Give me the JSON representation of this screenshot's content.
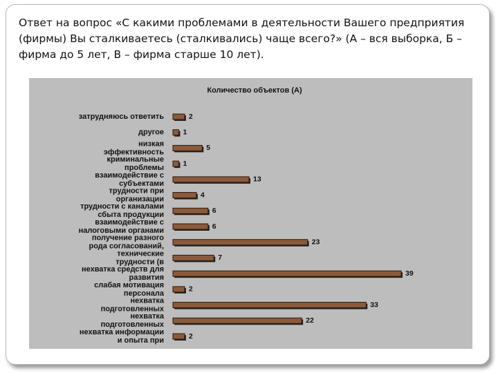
{
  "heading": "Ответ на вопрос «С какими проблемами в деятельности Вашего предприятия (фирмы) Вы сталкиваетесь (сталкивались) чаще всего?» (А – вся выборка, Б – фирма до 5 лет, В – фирма старше 10 лет).",
  "chart_data": {
    "type": "hbar",
    "title": "Количество объектов (А)",
    "categories": [
      [
        "затрудняюсь ответить"
      ],
      [
        "другое"
      ],
      [
        "низкая",
        "эффективность"
      ],
      [
        "криминальные",
        "проблемы"
      ],
      [
        "взаимодействие с",
        "субъектами"
      ],
      [
        "трудности при",
        "организации"
      ],
      [
        "трудности с каналами",
        "сбыта продукции"
      ],
      [
        "взаимодействие с",
        "налоговыми органами"
      ],
      [
        "получение разного",
        "рода согласований,"
      ],
      [
        "технические",
        "трудности (в"
      ],
      [
        "нехватка средств для",
        "развития"
      ],
      [
        "слабая мотивация",
        "персонала"
      ],
      [
        "нехватка",
        "подготовленных"
      ],
      [
        "нехватка",
        "подготовленных"
      ],
      [
        "нехватка информации",
        "и опыта при"
      ]
    ],
    "values": [
      2,
      1,
      5,
      1,
      13,
      4,
      6,
      6,
      23,
      7,
      39,
      2,
      33,
      22,
      2
    ],
    "color": "#8a5a3a"
  }
}
